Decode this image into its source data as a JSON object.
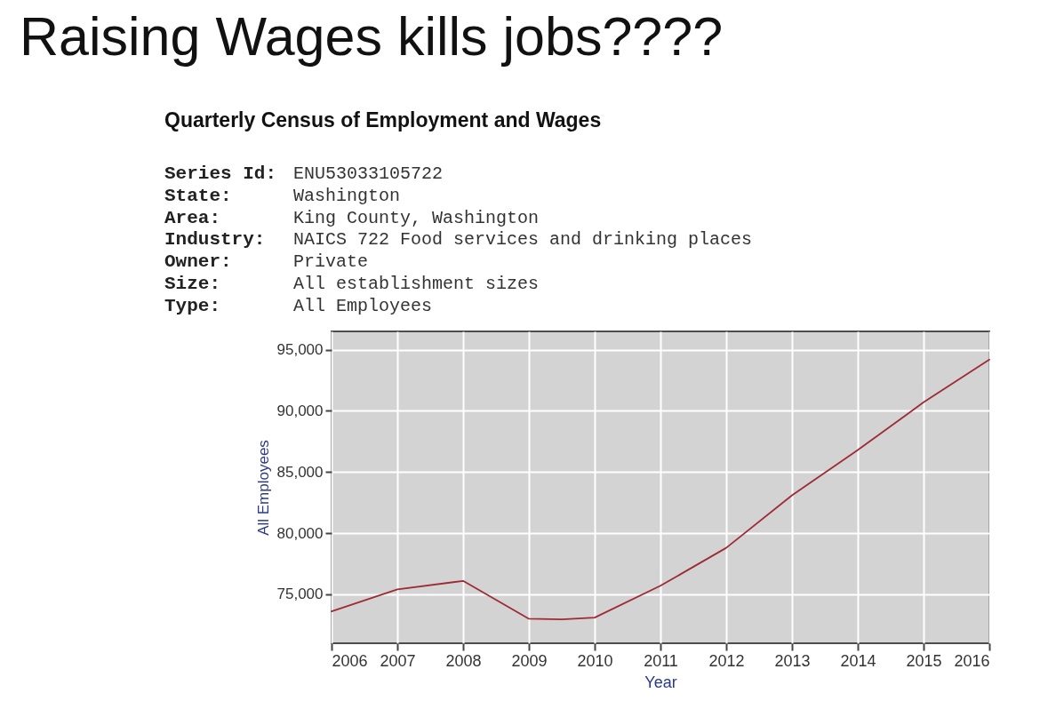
{
  "chart_data": {
    "type": "line",
    "title": "Raising Wages kills jobs????",
    "subtitle": "Quarterly Census of Employment and Wages",
    "annotations": [
      "Series Id: ENU53033105722",
      "State: Washington",
      "Area: King County, Washington",
      "Industry: NAICS 722 Food services and drinking places",
      "Owner: Private",
      "Size: All establishment sizes",
      "Type: All Employees"
    ],
    "xlabel": "Year",
    "ylabel": "All Employees",
    "x": [
      2006,
      2007,
      2008,
      2009,
      2009.5,
      2010,
      2011,
      2012,
      2013,
      2014,
      2015,
      2016
    ],
    "series": [
      {
        "color": "#9e2a35",
        "values": [
          73600,
          75400,
          76100,
          73000,
          72950,
          73100,
          75700,
          78800,
          83100,
          86800,
          90700,
          94200
        ]
      }
    ],
    "xlim": [
      2006,
      2016
    ],
    "xticks": [
      2006,
      2007,
      2008,
      2009,
      2010,
      2011,
      2012,
      2013,
      2014,
      2015,
      2016
    ],
    "ylim": [
      71000,
      96500
    ],
    "yticks": [
      {
        "value": 75000,
        "label": "75,000"
      },
      {
        "value": 80000,
        "label": "80,000"
      },
      {
        "value": 85000,
        "label": "85,000"
      },
      {
        "value": 90000,
        "label": "90,000"
      },
      {
        "value": 95000,
        "label": "95,000"
      }
    ],
    "grid": true,
    "line_style": "solid"
  }
}
